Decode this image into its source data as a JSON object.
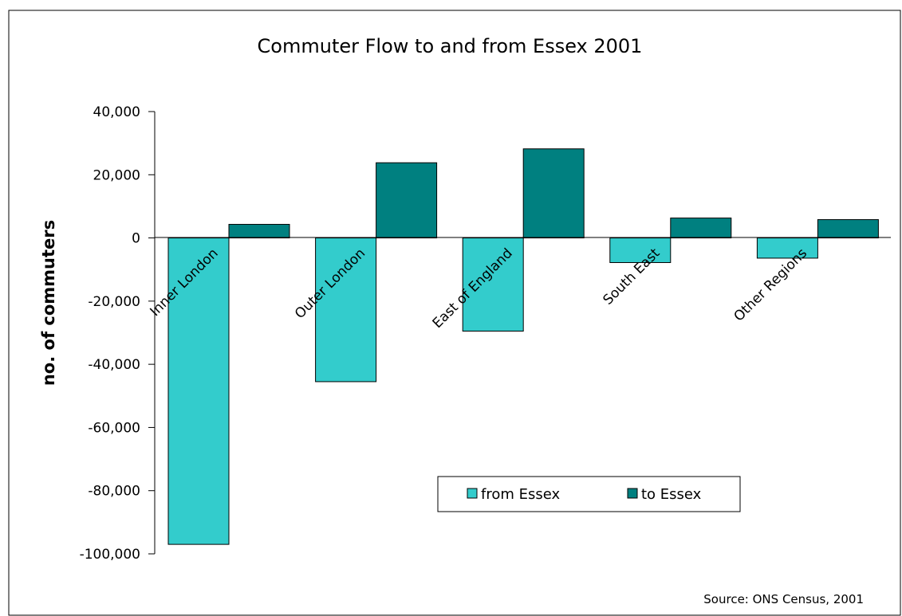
{
  "chart_data": {
    "type": "bar",
    "title": "Commuter Flow to and from Essex 2001",
    "xlabel": "",
    "ylabel": "no. of commuters",
    "categories": [
      "Inner London",
      "Outer London",
      "East of England",
      "South East",
      "Other Regions"
    ],
    "series": [
      {
        "name": "from Essex",
        "values": [
          -97000,
          -45500,
          -29500,
          -7800,
          -6400
        ],
        "color": "#33cccc"
      },
      {
        "name": "to Essex",
        "values": [
          4300,
          23800,
          28200,
          6300,
          5800
        ],
        "color": "#008080"
      }
    ],
    "ylim": [
      -100000,
      40000
    ],
    "yticks": [
      40000,
      20000,
      0,
      -20000,
      -40000,
      -60000,
      -80000,
      -100000
    ],
    "ytick_labels": [
      "40,000",
      "20,000",
      "0",
      "-20,000",
      "-40,000",
      "-60,000",
      "-80,000",
      "-100,000"
    ],
    "grid": false,
    "legend_position": "bottom-right, inside plot",
    "source": "Source: ONS Census, 2001"
  }
}
